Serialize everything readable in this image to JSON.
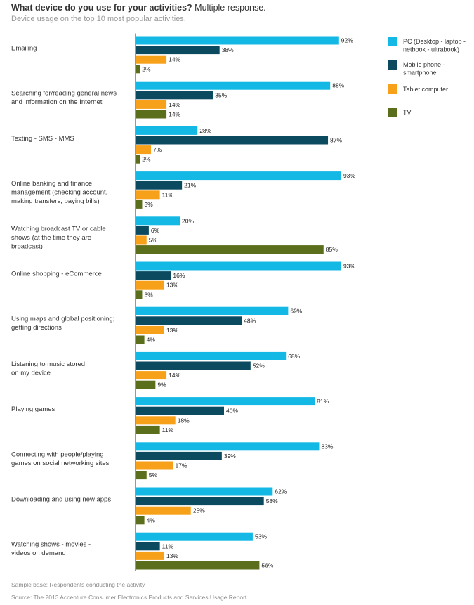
{
  "header": {
    "title_bold": "What device do you use for your activities?",
    "title_rest": " Multiple response.",
    "subtitle": "Device usage on the top 10 most popular activities."
  },
  "footer": {
    "sample_base": "Sample base: Respondents conducting the activity",
    "source": "Source: The 2013 Accenture Consumer Electronics Products and Services Usage Report"
  },
  "chart_data": {
    "type": "bar",
    "orientation": "horizontal",
    "value_suffix": "%",
    "xlim": [
      0,
      100
    ],
    "legend_position": "right",
    "categories": [
      [
        "Emailing"
      ],
      [
        "Searching for/reading general news",
        "and information on the Internet"
      ],
      [
        "Texting - SMS - MMS"
      ],
      [
        "Online banking and finance",
        "management (checking account,",
        "making transfers, paying bills)"
      ],
      [
        "Watching broadcast TV or cable",
        "shows (at the time they are",
        "broadcast)"
      ],
      [
        "Online shopping - eCommerce"
      ],
      [
        "Using maps and global positioning;",
        "getting directions"
      ],
      [
        "Listening to music stored",
        "on my device"
      ],
      [
        "Playing games"
      ],
      [
        "Connecting with people/playing",
        "games on social networking sites"
      ],
      [
        "Downloading and using new apps"
      ],
      [
        "Watching shows - movies -",
        "videos on demand"
      ]
    ],
    "series": [
      {
        "name": [
          "PC (Desktop - laptop -",
          "netbook - ultrabook)"
        ],
        "color": "#14B8E5",
        "values": [
          92,
          88,
          28,
          93,
          20,
          93,
          69,
          68,
          81,
          83,
          62,
          53
        ]
      },
      {
        "name": [
          "Mobile phone -",
          "smartphone"
        ],
        "color": "#0C4A60",
        "values": [
          38,
          35,
          87,
          21,
          6,
          16,
          48,
          52,
          40,
          39,
          58,
          11
        ]
      },
      {
        "name": [
          "Tablet computer"
        ],
        "color": "#F7A11A",
        "values": [
          14,
          14,
          7,
          11,
          5,
          13,
          13,
          14,
          18,
          17,
          25,
          13
        ]
      },
      {
        "name": [
          "TV"
        ],
        "color": "#5B6E1B",
        "values": [
          2,
          14,
          2,
          3,
          85,
          3,
          4,
          9,
          11,
          5,
          4,
          56
        ]
      }
    ]
  }
}
